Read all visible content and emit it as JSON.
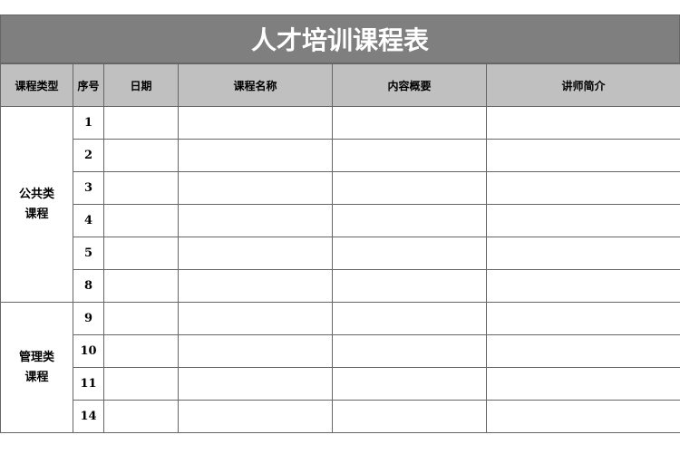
{
  "title": "人才培训课程表",
  "headers": [
    "课程类型",
    "序号",
    "日期",
    "课程名称",
    "内容概要",
    "讲师简介"
  ],
  "groups": [
    {
      "line1": "公共类",
      "line2": "课程",
      "rows": [
        "1",
        "2",
        "3",
        "4",
        "5",
        "8"
      ]
    },
    {
      "line1": "管理类",
      "line2": "课程",
      "rows": [
        "9",
        "10",
        "11",
        "14"
      ]
    }
  ]
}
